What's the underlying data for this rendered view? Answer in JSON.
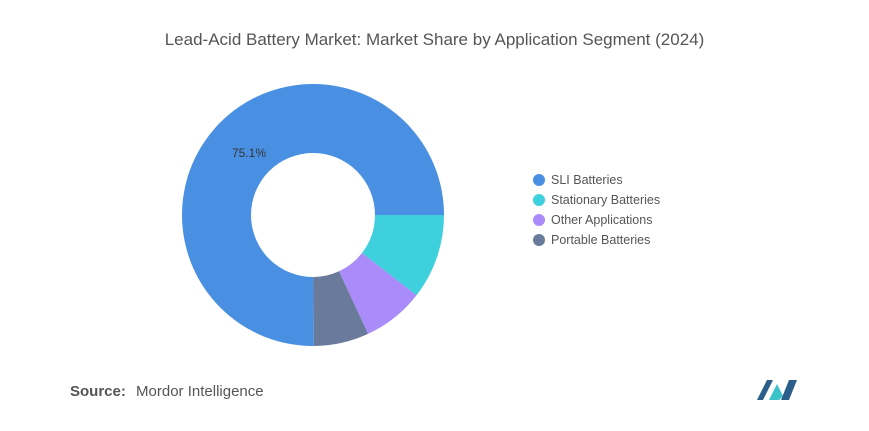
{
  "title": "Lead-Acid Battery Market: Market Share by Application Segment (2024)",
  "source": {
    "label": "Source:",
    "value": "Mordor Intelligence"
  },
  "logo": {
    "icon": "mordor-intelligence-logo",
    "colors": [
      "#2b5f8a",
      "#3cc3c9"
    ]
  },
  "chart_data": {
    "type": "pie",
    "variant": "donut",
    "legend_position": "right",
    "series": [
      {
        "name": "SLI Batteries",
        "value": 75.1,
        "color": "#4a90e2",
        "label": "75.1%"
      },
      {
        "name": "Stationary Batteries",
        "value": 10.5,
        "color": "#3ed0dc",
        "label": ""
      },
      {
        "name": "Other Applications",
        "value": 7.6,
        "color": "#a98bfa",
        "label": ""
      },
      {
        "name": "Portable Batteries",
        "value": 6.8,
        "color": "#697a9b",
        "label": ""
      }
    ]
  }
}
